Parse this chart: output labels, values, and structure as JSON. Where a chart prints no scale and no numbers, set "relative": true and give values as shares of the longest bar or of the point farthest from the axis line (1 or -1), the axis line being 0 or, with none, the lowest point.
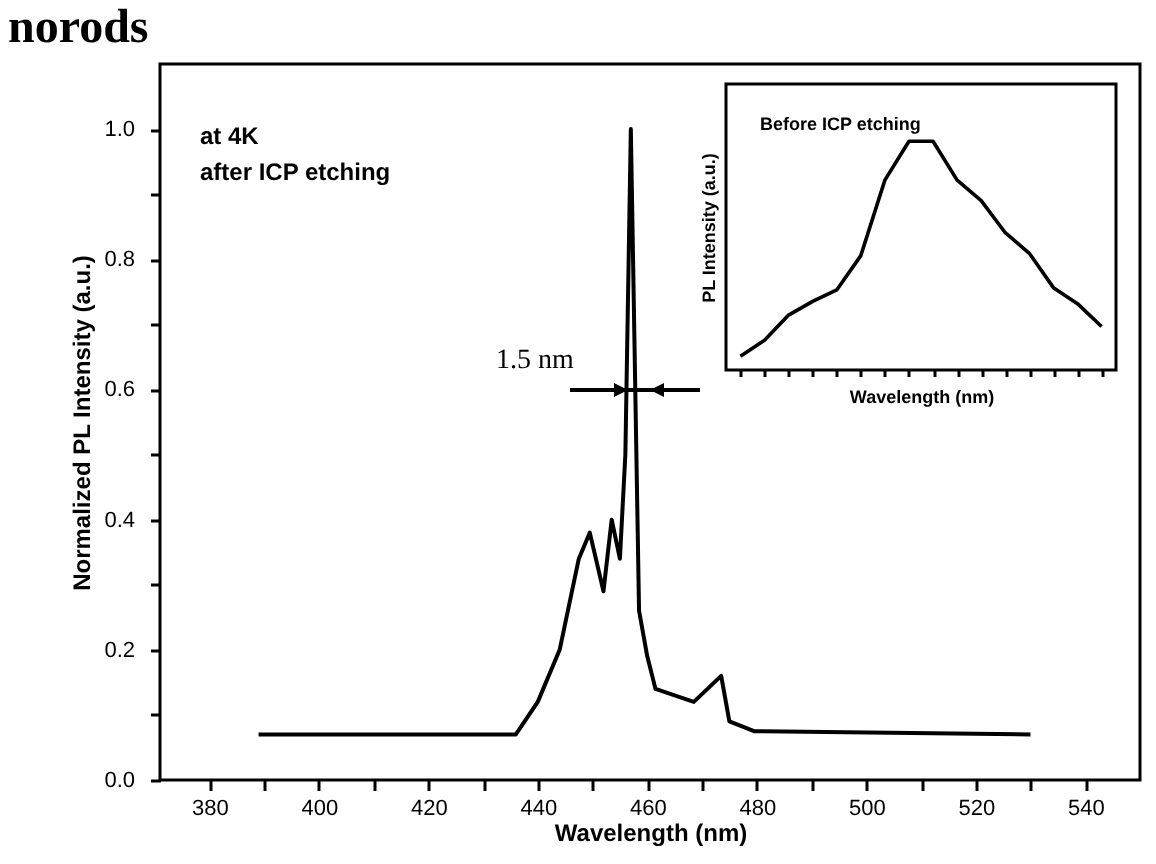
{
  "chart_data": [
    {
      "type": "line",
      "title": "norods",
      "xlabel": "Wavelength (nm)",
      "ylabel": "Normalized PL Intensity (a.u.)",
      "x": [
        389,
        436,
        440,
        444,
        447.5,
        449.5,
        452,
        453.5,
        455,
        456,
        457,
        458.5,
        460,
        461.5,
        468.5,
        473.5,
        475,
        479.5,
        530
      ],
      "series": [
        {
          "color": "#000000",
          "values": [
            0.07,
            0.07,
            0.12,
            0.2,
            0.34,
            0.38,
            0.29,
            0.4,
            0.34,
            0.5,
            1.0,
            0.26,
            0.19,
            0.14,
            0.12,
            0.16,
            0.09,
            0.075,
            0.07
          ]
        }
      ],
      "xlim": [
        371,
        550
      ],
      "ylim": [
        0,
        1.1
      ],
      "xticks": [
        380,
        {
          "value": 390,
          "label": null
        },
        400,
        {
          "value": 410,
          "label": null
        },
        420,
        {
          "value": 430,
          "label": null
        },
        440,
        {
          "value": 450,
          "label": null
        },
        460,
        {
          "value": 470,
          "label": null
        },
        480,
        {
          "value": 490,
          "label": null
        },
        500,
        {
          "value": 510,
          "label": null
        },
        520,
        {
          "value": 530,
          "label": null
        },
        540
      ],
      "yticks": [
        {
          "value": 0,
          "label": "0.0"
        },
        {
          "value": 0.1,
          "label": null
        },
        {
          "value": 0.2,
          "label": "0.2"
        },
        {
          "value": 0.3,
          "label": null
        },
        {
          "value": 0.4,
          "label": "0.4"
        },
        {
          "value": 0.5,
          "label": null
        },
        {
          "value": 0.6,
          "label": "0.6"
        },
        {
          "value": 0.7,
          "label": null
        },
        {
          "value": 0.8,
          "label": "0.8"
        },
        {
          "value": 0.9,
          "label": null
        },
        {
          "value": 1,
          "label": "1.0"
        }
      ],
      "annotations": [
        "at 4K",
        "after ICP etching",
        "1.5 nm"
      ],
      "line_style": "solid",
      "marker": "none",
      "grid": false
    },
    {
      "type": "line",
      "relative": true,
      "xlabel": "Wavelength (nm)",
      "ylabel": "PL Intensity (a.u.)",
      "categories": [
        null,
        null,
        null,
        null,
        null,
        null,
        null,
        null,
        null,
        null,
        null,
        null,
        null,
        null,
        null,
        null
      ],
      "series": [
        {
          "color": "#000000",
          "values": [
            0.06,
            0.13,
            0.24,
            0.3,
            0.35,
            0.5,
            0.83,
            1,
            1,
            0.83,
            0.74,
            0.6,
            0.51,
            0.36,
            0.29,
            0.19
          ]
        }
      ],
      "annotations": [
        "Before ICP etching"
      ],
      "line_style": "solid",
      "marker": "none",
      "grid": false
    }
  ]
}
